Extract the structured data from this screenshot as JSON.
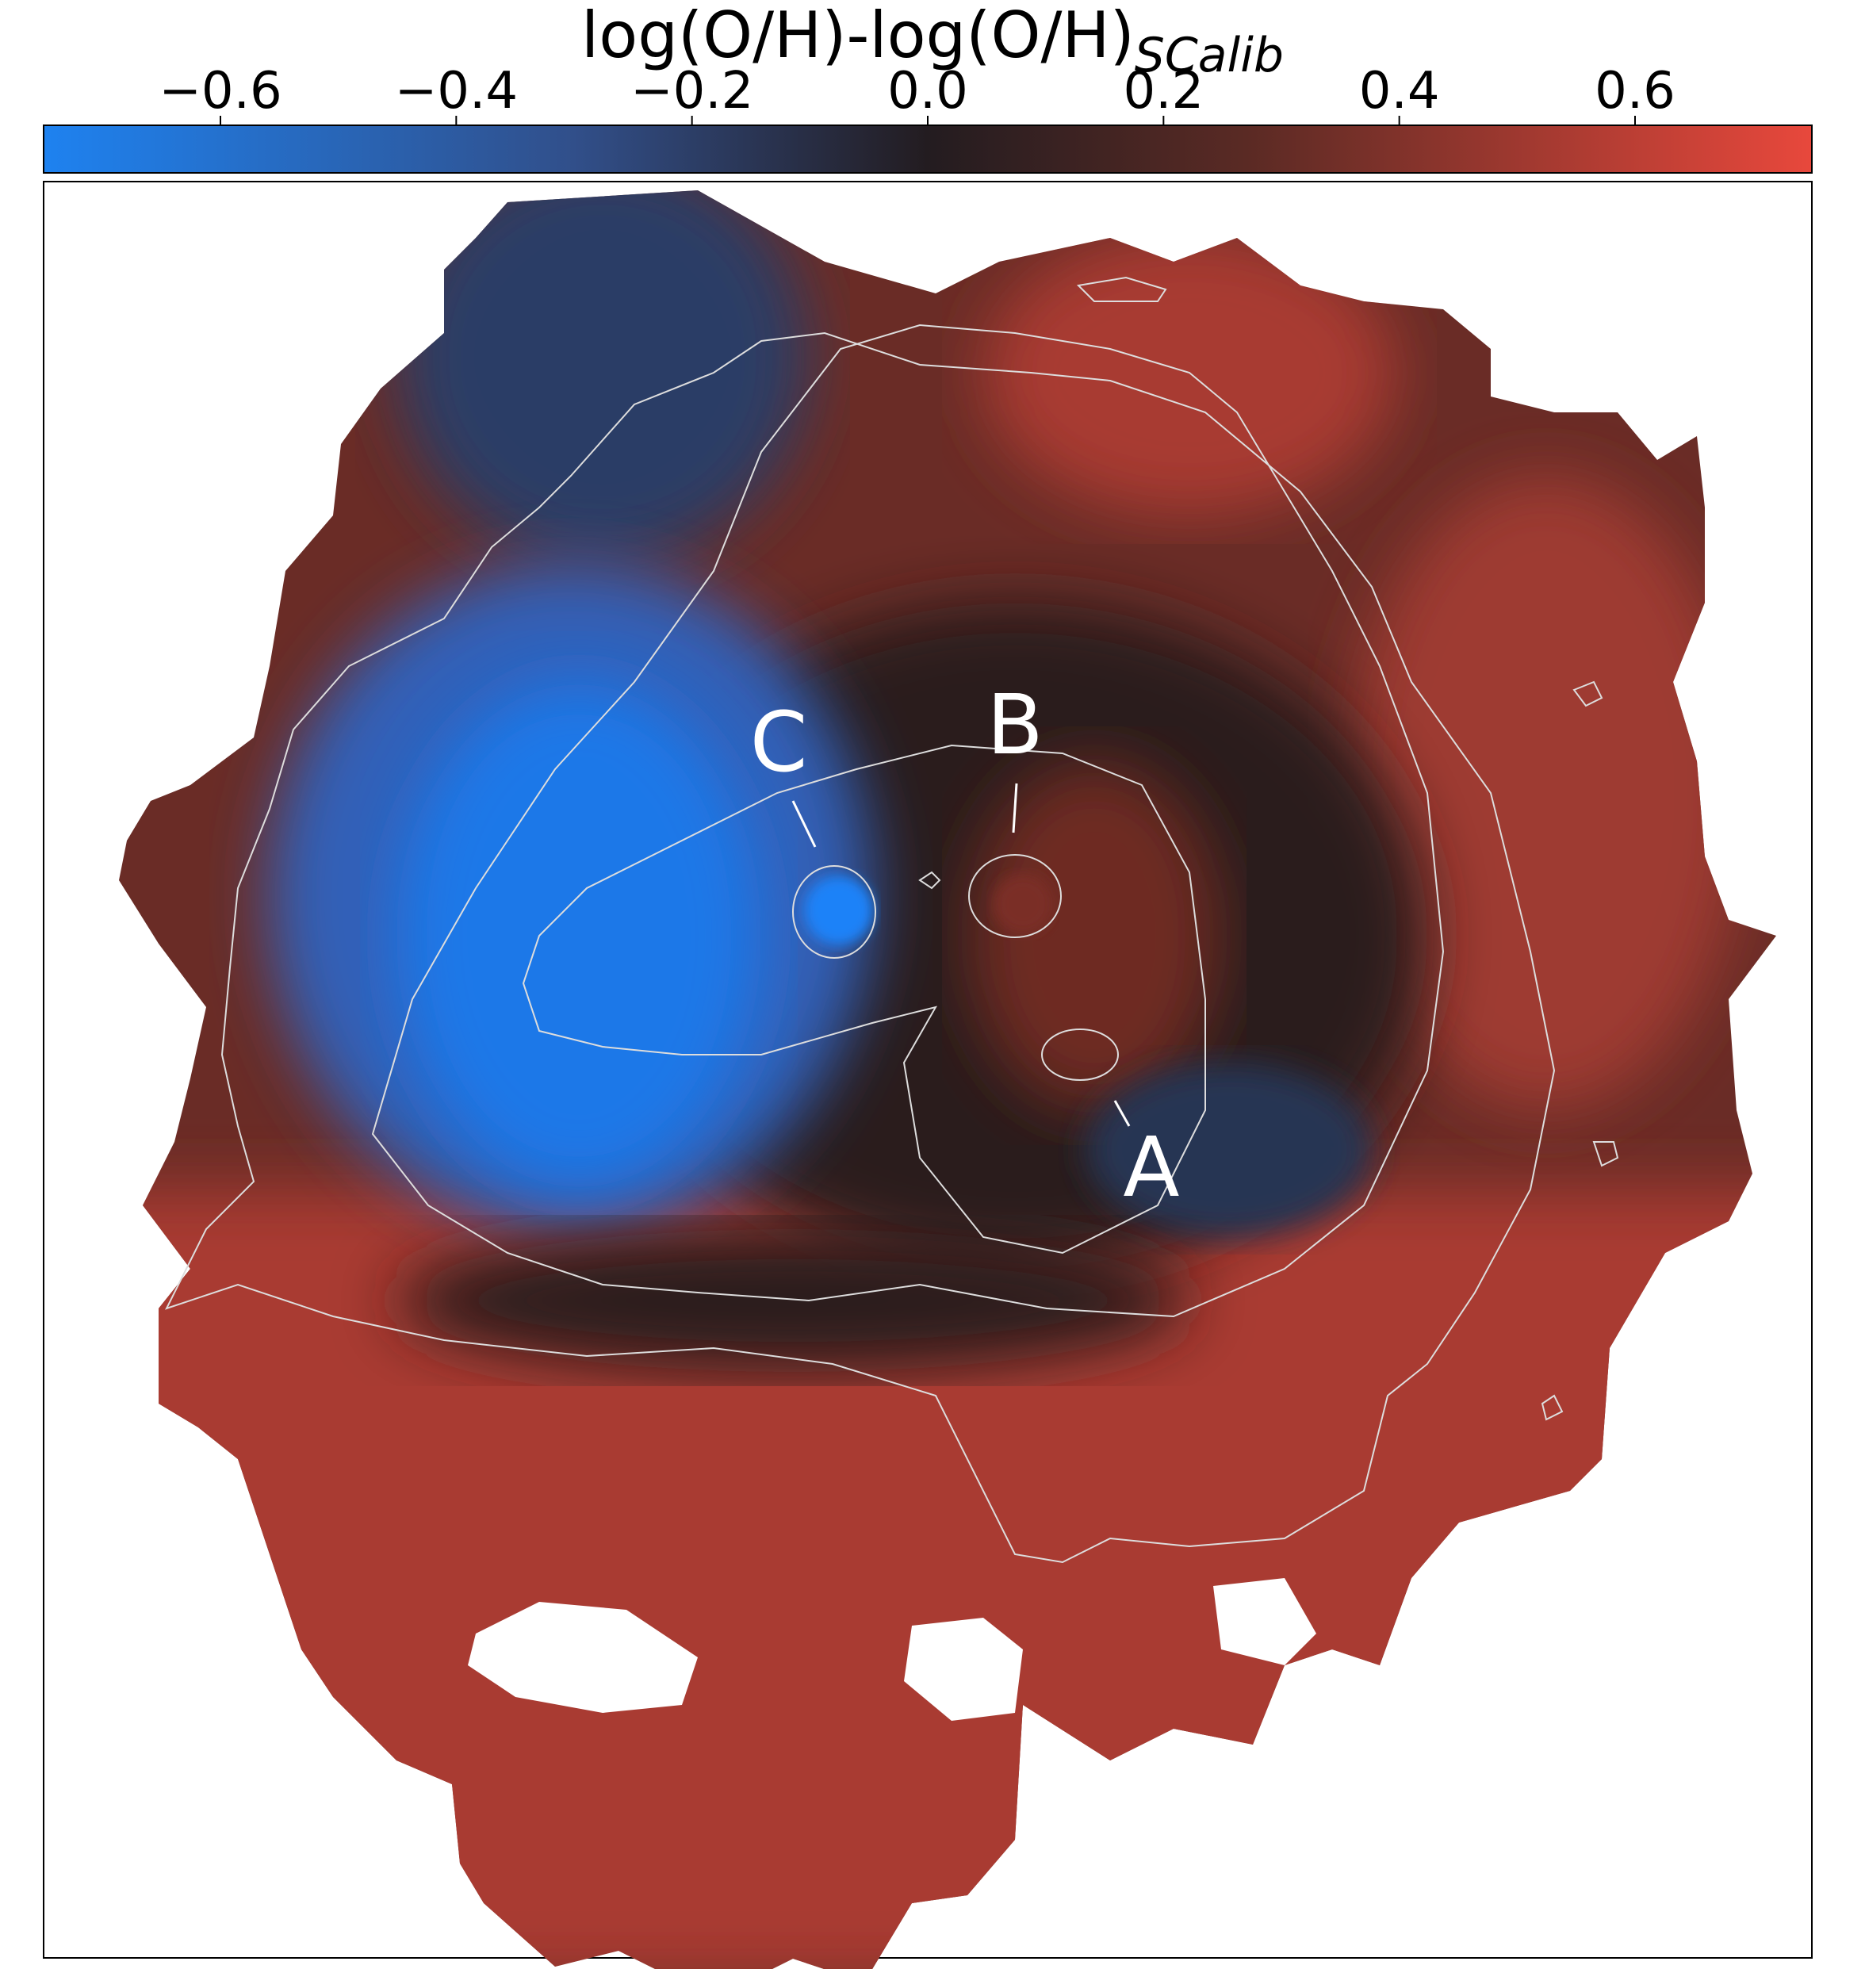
{
  "chart_data": {
    "type": "heatmap",
    "title": "",
    "colorbar": {
      "label_main": "log(O/H)-log(O/H)",
      "label_subscript": "SCalib",
      "location": "top",
      "range": [
        -0.75,
        0.75
      ],
      "ticks": [
        -0.6,
        -0.4,
        -0.2,
        0.0,
        0.2,
        0.4,
        0.6
      ],
      "tick_labels": [
        "−0.6",
        "−0.4",
        "−0.2",
        "0.0",
        "0.2",
        "0.4",
        "0.6"
      ],
      "colormap": [
        "#1e82f0",
        "#314f8a",
        "#231c20",
        "#5a2a24",
        "#e8483c"
      ]
    },
    "map_description_values": {
      "blue_region_typical": -0.55,
      "dark_core_typical": 0.05,
      "outer_red_typical": 0.45,
      "max_red": 0.7
    },
    "annotations": [
      {
        "label": "A",
        "marks": "inner contour knot lower-right"
      },
      {
        "label": "B",
        "marks": "central contour knot"
      },
      {
        "label": "C",
        "marks": "bright blue knot"
      }
    ],
    "contours": {
      "color": "#dddddd",
      "levels": 4
    },
    "axes": {
      "xticks": [],
      "yticks": [],
      "frame": true
    }
  }
}
